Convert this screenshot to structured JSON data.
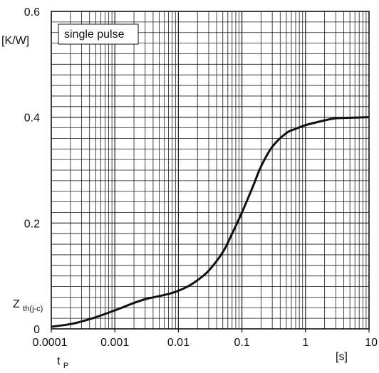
{
  "chart_data": {
    "type": "line",
    "title": "",
    "annotation": "single pulse",
    "xlabel_main": "t",
    "xlabel_sub": "P",
    "xunit": "[s]",
    "ylabel_main": "Z",
    "ylabel_sub": "th(j-c)",
    "yunit": "[K/W]",
    "xscale": "log",
    "xlim": [
      0.0001,
      10
    ],
    "ylim": [
      0,
      0.6
    ],
    "grid": true,
    "x_ticks": [
      "0.0001",
      "0.001",
      "0.01",
      "0.1",
      "1",
      "10"
    ],
    "y_ticks": [
      "0",
      "0.2",
      "0.4",
      "0.6"
    ],
    "series": [
      {
        "x": [
          0.0001,
          0.0002,
          0.0003,
          0.0005,
          0.001,
          0.002,
          0.003,
          0.005,
          0.007,
          0.01,
          0.015,
          0.02,
          0.03,
          0.05,
          0.07,
          0.1,
          0.15,
          0.2,
          0.3,
          0.5,
          0.7,
          1,
          2,
          3,
          5,
          10
        ],
        "y": [
          0.004,
          0.009,
          0.014,
          0.022,
          0.035,
          0.049,
          0.056,
          0.062,
          0.066,
          0.072,
          0.082,
          0.092,
          0.11,
          0.145,
          0.18,
          0.22,
          0.27,
          0.307,
          0.344,
          0.37,
          0.378,
          0.385,
          0.394,
          0.398,
          0.399,
          0.4
        ]
      }
    ],
    "colors": {
      "line": "#111111",
      "grid": "#1a1a1a",
      "background": "#ffffff"
    }
  }
}
